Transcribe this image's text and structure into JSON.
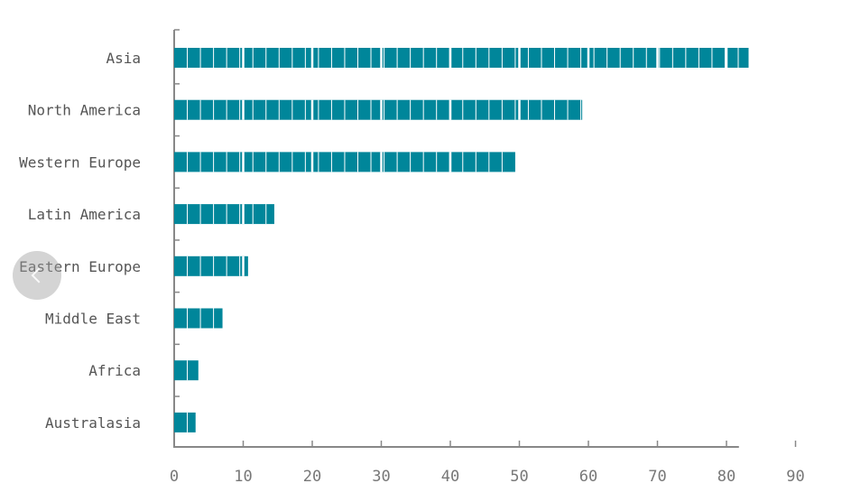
{
  "chart_data": {
    "type": "bar",
    "orientation": "horizontal",
    "categories": [
      "Asia",
      "North America",
      "Western Europe",
      "Latin America",
      "Eastern Europe",
      "Middle East",
      "Africa",
      "Australasia"
    ],
    "values": [
      83.2,
      59.1,
      49.4,
      14.5,
      10.7,
      7.0,
      3.5,
      3.1
    ],
    "xlim": [
      0,
      90
    ],
    "xticks": [
      "0",
      "10",
      "20",
      "30",
      "40",
      "50",
      "60",
      "70",
      "80",
      "90"
    ],
    "title": "",
    "xlabel": "",
    "ylabel": "",
    "grid": false,
    "legend": "none",
    "bar_color": "#00869a",
    "mark_style": "segmented bars, one segment per unit, heavier divider every 10 units"
  },
  "controls": {
    "prev_icon": "chevron-left-icon"
  }
}
